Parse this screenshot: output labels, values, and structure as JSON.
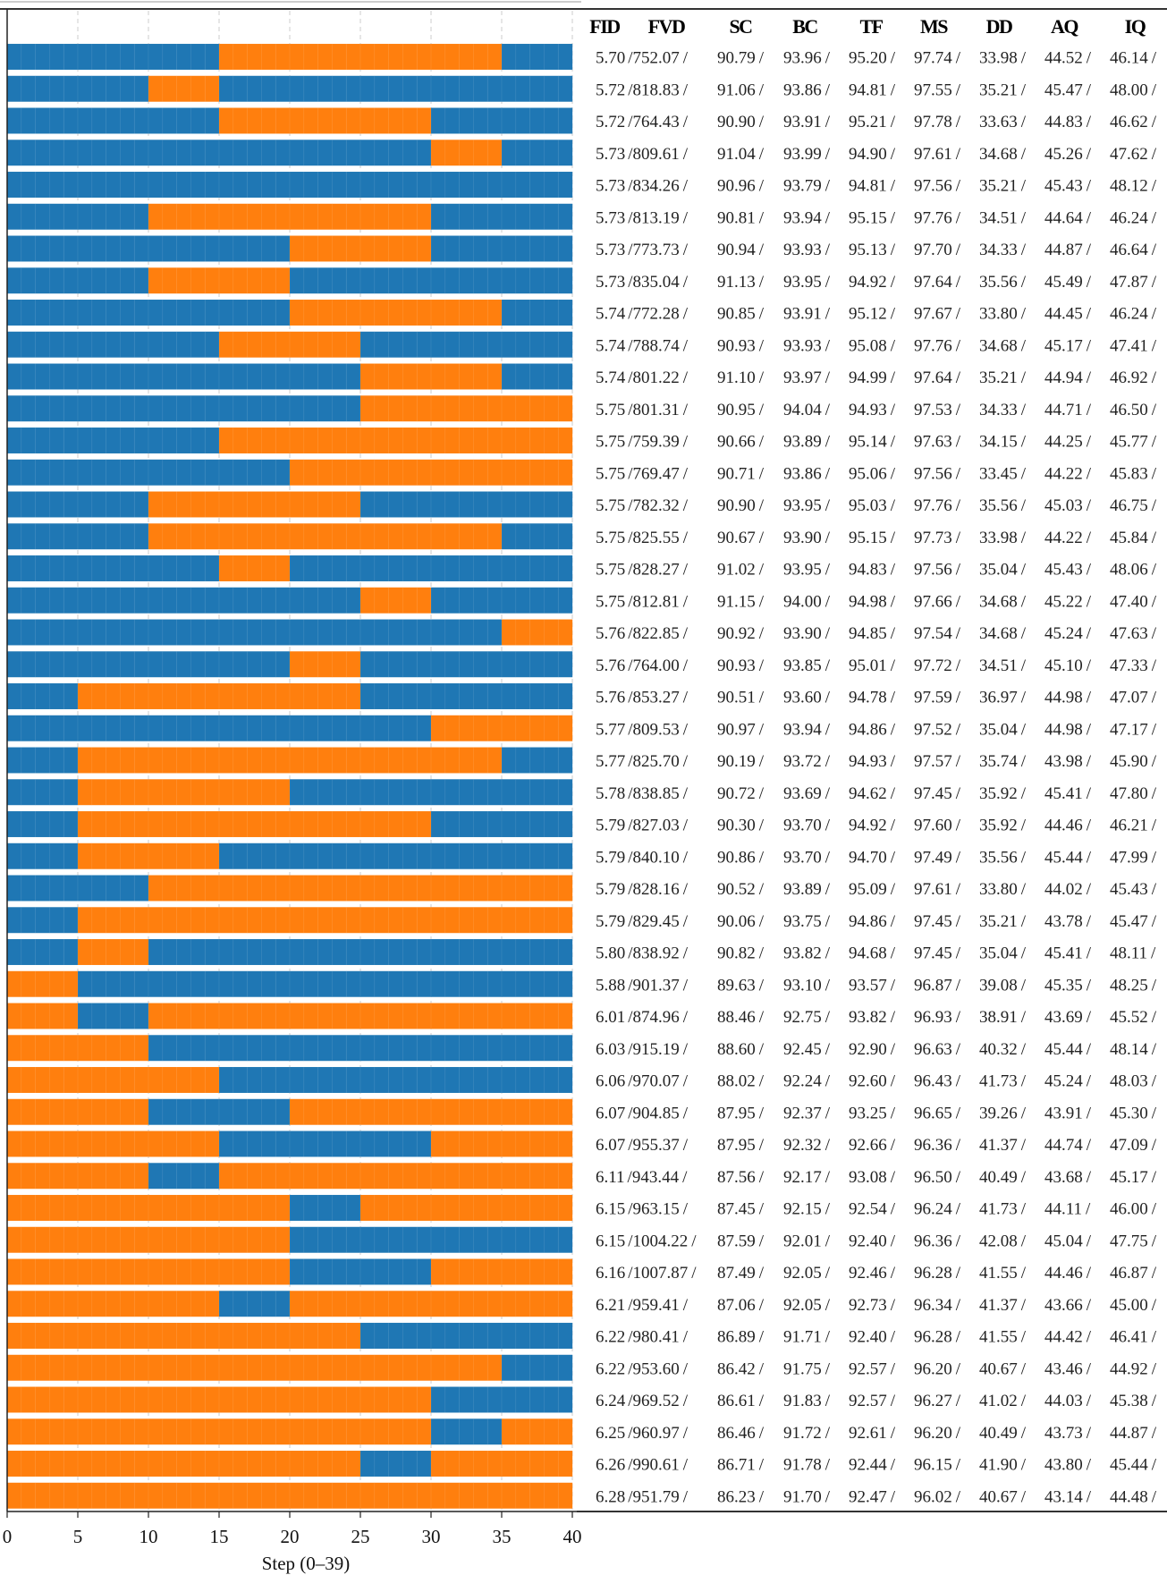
{
  "chart_data": {
    "type": "bar",
    "subtype": "stacked-horizontal-segments",
    "xlabel": "Step (0–39)",
    "xlim": [
      0,
      40
    ],
    "xticks": [
      "0",
      "5",
      "10",
      "15",
      "20",
      "25",
      "30",
      "35",
      "40"
    ],
    "block_size": 5,
    "colors": {
      "B": "#1f77b4",
      "O": "#ff7f0e"
    },
    "grid": "vertical dashed every 5",
    "table_headers": [
      "FID",
      "FVD",
      "SC",
      "BC",
      "TF",
      "MS",
      "DD",
      "AQ",
      "IQ"
    ],
    "rows": [
      {
        "pattern": "BBBOOOOB",
        "values": [
          "5.70",
          "752.07",
          "90.79",
          "93.96",
          "95.20",
          "97.74",
          "33.98",
          "44.52",
          "46.14"
        ]
      },
      {
        "pattern": "BBOBBBBB",
        "values": [
          "5.72",
          "818.83",
          "91.06",
          "93.86",
          "94.81",
          "97.55",
          "35.21",
          "45.47",
          "48.00"
        ]
      },
      {
        "pattern": "BBBOOOBB",
        "values": [
          "5.72",
          "764.43",
          "90.90",
          "93.91",
          "95.21",
          "97.78",
          "33.63",
          "44.83",
          "46.62"
        ]
      },
      {
        "pattern": "BBBBBBOB",
        "values": [
          "5.73",
          "809.61",
          "91.04",
          "93.99",
          "94.90",
          "97.61",
          "34.68",
          "45.26",
          "47.62"
        ]
      },
      {
        "pattern": "BBBBBBBB",
        "values": [
          "5.73",
          "834.26",
          "90.96",
          "93.79",
          "94.81",
          "97.56",
          "35.21",
          "45.43",
          "48.12"
        ]
      },
      {
        "pattern": "BBOOOOBB",
        "values": [
          "5.73",
          "813.19",
          "90.81",
          "93.94",
          "95.15",
          "97.76",
          "34.51",
          "44.64",
          "46.24"
        ]
      },
      {
        "pattern": "BBBBOOBB",
        "values": [
          "5.73",
          "773.73",
          "90.94",
          "93.93",
          "95.13",
          "97.70",
          "34.33",
          "44.87",
          "46.64"
        ]
      },
      {
        "pattern": "BBOOBBBB",
        "values": [
          "5.73",
          "835.04",
          "91.13",
          "93.95",
          "94.92",
          "97.64",
          "35.56",
          "45.49",
          "47.87"
        ]
      },
      {
        "pattern": "BBBBOOOB",
        "values": [
          "5.74",
          "772.28",
          "90.85",
          "93.91",
          "95.12",
          "97.67",
          "33.80",
          "44.45",
          "46.24"
        ]
      },
      {
        "pattern": "BBBOOBBB",
        "values": [
          "5.74",
          "788.74",
          "90.93",
          "93.93",
          "95.08",
          "97.76",
          "34.68",
          "45.17",
          "47.41"
        ]
      },
      {
        "pattern": "BBBBBOOB",
        "values": [
          "5.74",
          "801.22",
          "91.10",
          "93.97",
          "94.99",
          "97.64",
          "35.21",
          "44.94",
          "46.92"
        ]
      },
      {
        "pattern": "BBBBBOOO",
        "values": [
          "5.75",
          "801.31",
          "90.95",
          "94.04",
          "94.93",
          "97.53",
          "34.33",
          "44.71",
          "46.50"
        ]
      },
      {
        "pattern": "BBBOOOOO",
        "values": [
          "5.75",
          "759.39",
          "90.66",
          "93.89",
          "95.14",
          "97.63",
          "34.15",
          "44.25",
          "45.77"
        ]
      },
      {
        "pattern": "BBBBOOOO",
        "values": [
          "5.75",
          "769.47",
          "90.71",
          "93.86",
          "95.06",
          "97.56",
          "33.45",
          "44.22",
          "45.83"
        ]
      },
      {
        "pattern": "BBOOOBBB",
        "values": [
          "5.75",
          "782.32",
          "90.90",
          "93.95",
          "95.03",
          "97.76",
          "35.56",
          "45.03",
          "46.75"
        ]
      },
      {
        "pattern": "BBOOOOOB",
        "values": [
          "5.75",
          "825.55",
          "90.67",
          "93.90",
          "95.15",
          "97.73",
          "33.98",
          "44.22",
          "45.84"
        ]
      },
      {
        "pattern": "BBBOBBBB",
        "values": [
          "5.75",
          "828.27",
          "91.02",
          "93.95",
          "94.83",
          "97.56",
          "35.04",
          "45.43",
          "48.06"
        ]
      },
      {
        "pattern": "BBBBBOBB",
        "values": [
          "5.75",
          "812.81",
          "91.15",
          "94.00",
          "94.98",
          "97.66",
          "34.68",
          "45.22",
          "47.40"
        ]
      },
      {
        "pattern": "BBBBBBBO",
        "values": [
          "5.76",
          "822.85",
          "90.92",
          "93.90",
          "94.85",
          "97.54",
          "34.68",
          "45.24",
          "47.63"
        ]
      },
      {
        "pattern": "BBBBOBBB",
        "values": [
          "5.76",
          "764.00",
          "90.93",
          "93.85",
          "95.01",
          "97.72",
          "34.51",
          "45.10",
          "47.33"
        ]
      },
      {
        "pattern": "BOOOOBBB",
        "values": [
          "5.76",
          "853.27",
          "90.51",
          "93.60",
          "94.78",
          "97.59",
          "36.97",
          "44.98",
          "47.07"
        ]
      },
      {
        "pattern": "BBBBBBOO",
        "values": [
          "5.77",
          "809.53",
          "90.97",
          "93.94",
          "94.86",
          "97.52",
          "35.04",
          "44.98",
          "47.17"
        ]
      },
      {
        "pattern": "BOOOOOOB",
        "values": [
          "5.77",
          "825.70",
          "90.19",
          "93.72",
          "94.93",
          "97.57",
          "35.74",
          "43.98",
          "45.90"
        ]
      },
      {
        "pattern": "BOOOBBBB",
        "values": [
          "5.78",
          "838.85",
          "90.72",
          "93.69",
          "94.62",
          "97.45",
          "35.92",
          "45.41",
          "47.80"
        ]
      },
      {
        "pattern": "BOOOOOBB",
        "values": [
          "5.79",
          "827.03",
          "90.30",
          "93.70",
          "94.92",
          "97.60",
          "35.92",
          "44.46",
          "46.21"
        ]
      },
      {
        "pattern": "BOOBBBBB",
        "values": [
          "5.79",
          "840.10",
          "90.86",
          "93.70",
          "94.70",
          "97.49",
          "35.56",
          "45.44",
          "47.99"
        ]
      },
      {
        "pattern": "BBOOOOOO",
        "values": [
          "5.79",
          "828.16",
          "90.52",
          "93.89",
          "95.09",
          "97.61",
          "33.80",
          "44.02",
          "45.43"
        ]
      },
      {
        "pattern": "BOOOOOOO",
        "values": [
          "5.79",
          "829.45",
          "90.06",
          "93.75",
          "94.86",
          "97.45",
          "35.21",
          "43.78",
          "45.47"
        ]
      },
      {
        "pattern": "BOBBBBBB",
        "values": [
          "5.80",
          "838.92",
          "90.82",
          "93.82",
          "94.68",
          "97.45",
          "35.04",
          "45.41",
          "48.11"
        ]
      },
      {
        "pattern": "OBBBBBBB",
        "values": [
          "5.88",
          "901.37",
          "89.63",
          "93.10",
          "93.57",
          "96.87",
          "39.08",
          "45.35",
          "48.25"
        ]
      },
      {
        "pattern": "OBOOOOOO",
        "values": [
          "6.01",
          "874.96",
          "88.46",
          "92.75",
          "93.82",
          "96.93",
          "38.91",
          "43.69",
          "45.52"
        ]
      },
      {
        "pattern": "OOBBBBBB",
        "values": [
          "6.03",
          "915.19",
          "88.60",
          "92.45",
          "92.90",
          "96.63",
          "40.32",
          "45.44",
          "48.14"
        ]
      },
      {
        "pattern": "OOOBBBBB",
        "values": [
          "6.06",
          "970.07",
          "88.02",
          "92.24",
          "92.60",
          "96.43",
          "41.73",
          "45.24",
          "48.03"
        ]
      },
      {
        "pattern": "OOBBOOOO",
        "values": [
          "6.07",
          "904.85",
          "87.95",
          "92.37",
          "93.25",
          "96.65",
          "39.26",
          "43.91",
          "45.30"
        ]
      },
      {
        "pattern": "OOOBBBOO",
        "values": [
          "6.07",
          "955.37",
          "87.95",
          "92.32",
          "92.66",
          "96.36",
          "41.37",
          "44.74",
          "47.09"
        ]
      },
      {
        "pattern": "OOBOOOOO",
        "values": [
          "6.11",
          "943.44",
          "87.56",
          "92.17",
          "93.08",
          "96.50",
          "40.49",
          "43.68",
          "45.17"
        ]
      },
      {
        "pattern": "OOOOBOOO",
        "values": [
          "6.15",
          "963.15",
          "87.45",
          "92.15",
          "92.54",
          "96.24",
          "41.73",
          "44.11",
          "46.00"
        ]
      },
      {
        "pattern": "OOOOBBBB",
        "values": [
          "6.15",
          "1004.22",
          "87.59",
          "92.01",
          "92.40",
          "96.36",
          "42.08",
          "45.04",
          "47.75"
        ]
      },
      {
        "pattern": "OOOOBBOO",
        "values": [
          "6.16",
          "1007.87",
          "87.49",
          "92.05",
          "92.46",
          "96.28",
          "41.55",
          "44.46",
          "46.87"
        ]
      },
      {
        "pattern": "OOOBOOOO",
        "values": [
          "6.21",
          "959.41",
          "87.06",
          "92.05",
          "92.73",
          "96.34",
          "41.37",
          "43.66",
          "45.00"
        ]
      },
      {
        "pattern": "OOOOOBBB",
        "values": [
          "6.22",
          "980.41",
          "86.89",
          "91.71",
          "92.40",
          "96.28",
          "41.55",
          "44.42",
          "46.41"
        ]
      },
      {
        "pattern": "OOOOOOOB",
        "values": [
          "6.22",
          "953.60",
          "86.42",
          "91.75",
          "92.57",
          "96.20",
          "40.67",
          "43.46",
          "44.92"
        ]
      },
      {
        "pattern": "OOOOOOBB",
        "values": [
          "6.24",
          "969.52",
          "86.61",
          "91.83",
          "92.57",
          "96.27",
          "41.02",
          "44.03",
          "45.38"
        ]
      },
      {
        "pattern": "OOOOOOBO",
        "values": [
          "6.25",
          "960.97",
          "86.46",
          "91.72",
          "92.61",
          "96.20",
          "40.49",
          "43.73",
          "44.87"
        ]
      },
      {
        "pattern": "OOOOOBOO",
        "values": [
          "6.26",
          "990.61",
          "86.71",
          "91.78",
          "92.44",
          "96.15",
          "41.90",
          "43.80",
          "45.44"
        ]
      },
      {
        "pattern": "OOOOOOOO",
        "values": [
          "6.28",
          "951.79",
          "86.23",
          "91.70",
          "92.47",
          "96.02",
          "40.67",
          "43.14",
          "44.48"
        ]
      }
    ]
  }
}
